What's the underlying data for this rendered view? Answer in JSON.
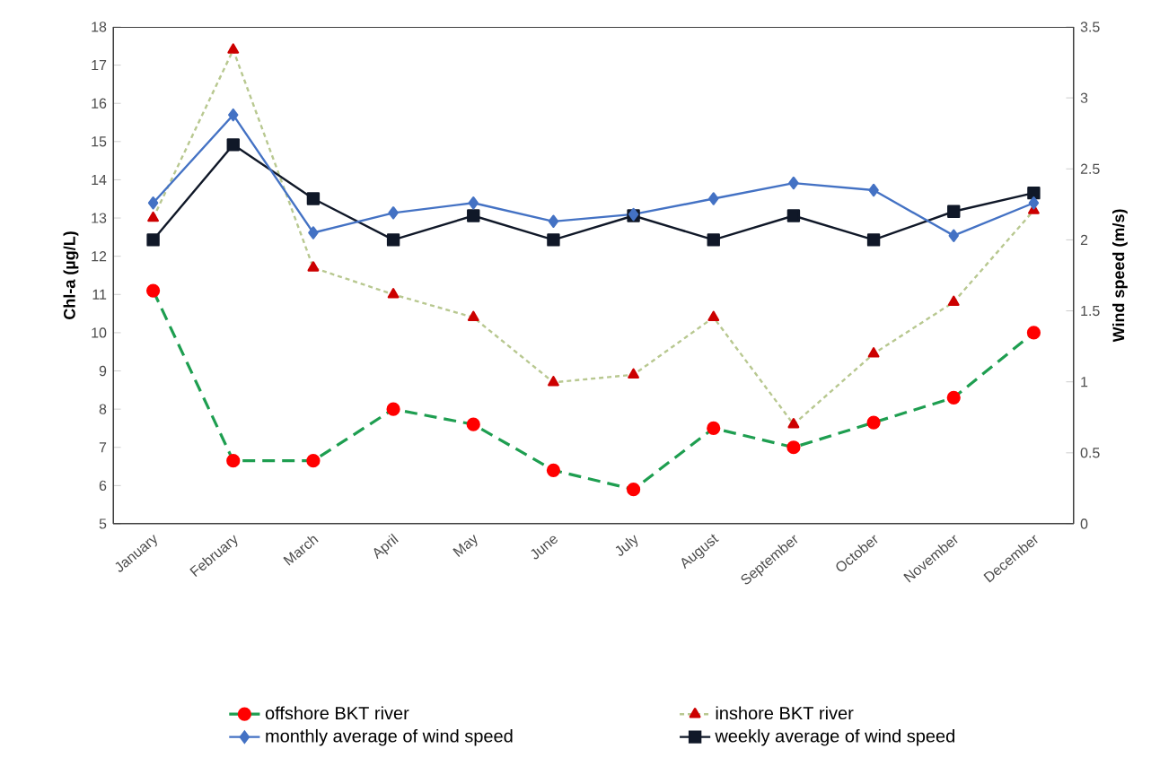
{
  "chart_data": {
    "type": "line",
    "ylabel": "Chl-a (µg/L)",
    "y2label": "Wind speed (m/s)",
    "categories": [
      "January",
      "February",
      "March",
      "April",
      "May",
      "June",
      "July",
      "August",
      "September",
      "October",
      "November",
      "December"
    ],
    "ylim": [
      5,
      18
    ],
    "yticks": [
      5,
      6,
      7,
      8,
      9,
      10,
      11,
      12,
      13,
      14,
      15,
      16,
      17,
      18
    ],
    "y2lim": [
      0,
      3.5
    ],
    "y2ticks": [
      0,
      0.5,
      1,
      1.5,
      2,
      2.5,
      3,
      3.5
    ],
    "legend": "bottom",
    "grid": false,
    "series": [
      {
        "name": "offshore BKT river",
        "color": "#1e9e50",
        "marker": "circle",
        "line_style": "dashed",
        "values": [
          11.1,
          6.65,
          6.65,
          8.0,
          7.6,
          6.4,
          5.9,
          7.5,
          7.0,
          7.65,
          8.3,
          10.0
        ]
      },
      {
        "name": "inshore BKT river",
        "color": "#b8c890",
        "marker": "triangle",
        "line_style": "dotted",
        "values": [
          13.0,
          17.4,
          11.7,
          11.0,
          10.4,
          8.7,
          8.9,
          10.4,
          7.6,
          9.45,
          10.8,
          13.2
        ]
      },
      {
        "name": "monthly average of wind speed",
        "color": "#4472c4",
        "marker": "diamond",
        "line_style": "solid",
        "axis": "y2",
        "values": [
          2.26,
          2.88,
          2.05,
          2.19,
          2.26,
          2.13,
          2.18,
          2.29,
          2.4,
          2.35,
          2.03,
          2.26
        ]
      },
      {
        "name": "weekly average of wind speed",
        "color": "#101828",
        "marker": "square",
        "line_style": "solid",
        "axis": "y2",
        "values": [
          2.0,
          2.67,
          2.29,
          2.0,
          2.17,
          2.0,
          2.17,
          2.0,
          2.17,
          2.0,
          2.2,
          2.33
        ]
      }
    ]
  }
}
